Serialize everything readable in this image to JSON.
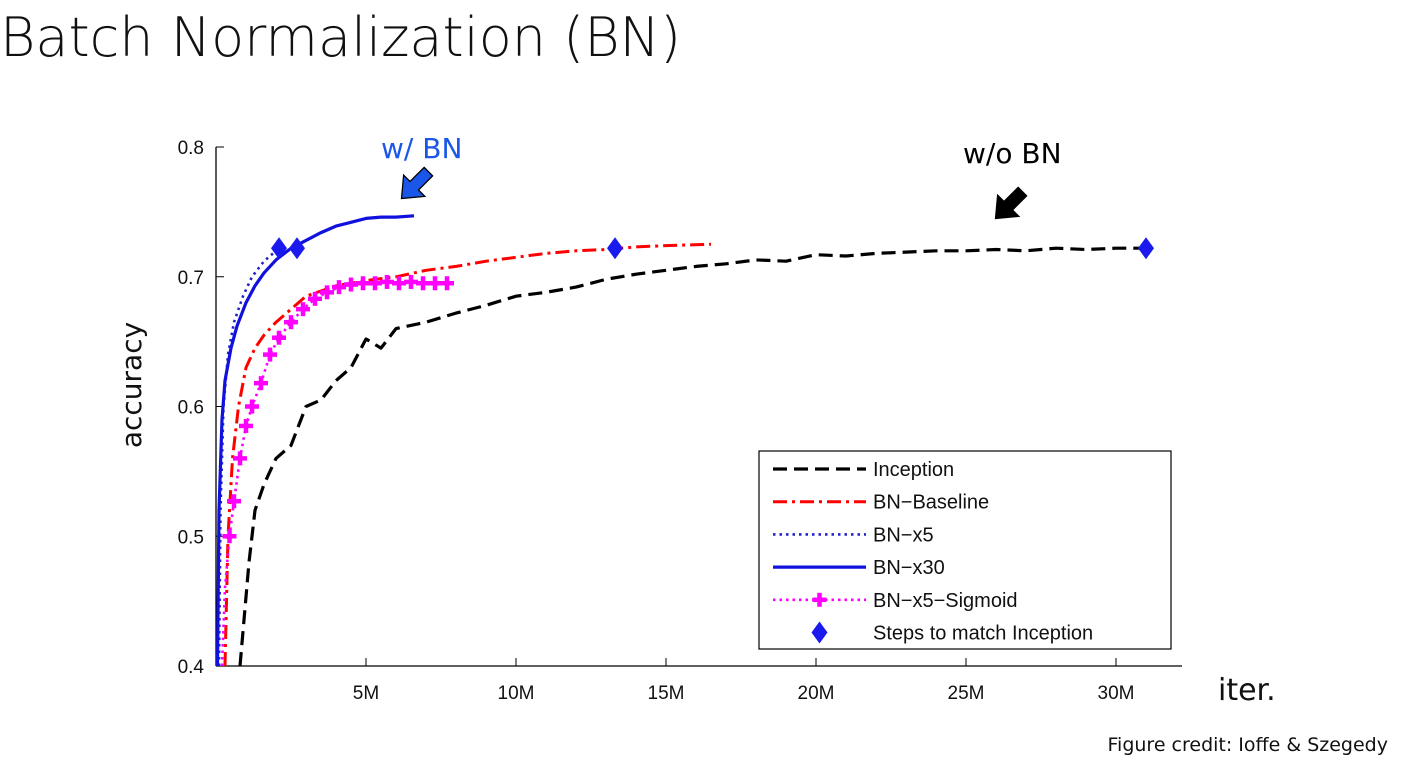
{
  "slide": {
    "title": "Batch Normalization (BN)",
    "credit": "Figure credit: Ioffe & Szegedy"
  },
  "chart_data": {
    "type": "line",
    "title": "",
    "xlabel": "iter.",
    "ylabel": "accuracy",
    "xlim": [
      0,
      32.2
    ],
    "ylim": [
      0.4,
      0.8
    ],
    "x_unit": "M",
    "xticks": [
      5,
      10,
      15,
      20,
      25,
      30
    ],
    "xtick_labels": [
      "5M",
      "10M",
      "15M",
      "20M",
      "25M",
      "30M"
    ],
    "yticks": [
      0.4,
      0.5,
      0.6,
      0.7,
      0.8
    ],
    "ytick_labels": [
      "0.4",
      "0.5",
      "0.6",
      "0.7",
      "0.8"
    ],
    "grid": false,
    "legend_position": "bottom-right",
    "colors": {
      "inception": "#000000",
      "bn_baseline": "#ff0000",
      "bn_x5": "#2222cc",
      "bn_x30": "#1111dd",
      "bn_x5_sigmoid": "#ff00ff",
      "steps_marker": "#1a1aee",
      "wbn_text": "#1a56e8",
      "wbn_arrow": "#1a56e8",
      "wobn_arrow": "#000000"
    },
    "series": [
      {
        "name": "Inception",
        "style": "dashed",
        "x": [
          0.8,
          0.95,
          1.1,
          1.3,
          1.6,
          2.0,
          2.5,
          3.0,
          3.5,
          4.0,
          4.5,
          5.0,
          5.5,
          6.0,
          7.0,
          8.0,
          9.0,
          10.0,
          11.0,
          12.0,
          13.0,
          14.0,
          15.0,
          16.0,
          17.0,
          18.0,
          19.0,
          20.0,
          21.0,
          22.0,
          23.0,
          24.0,
          25.0,
          26.0,
          27.0,
          28.0,
          29.0,
          30.0,
          31.0
        ],
        "y": [
          0.4,
          0.44,
          0.48,
          0.52,
          0.54,
          0.56,
          0.57,
          0.6,
          0.605,
          0.62,
          0.63,
          0.652,
          0.645,
          0.66,
          0.665,
          0.672,
          0.678,
          0.685,
          0.688,
          0.692,
          0.698,
          0.702,
          0.705,
          0.708,
          0.71,
          0.713,
          0.712,
          0.717,
          0.716,
          0.718,
          0.719,
          0.72,
          0.72,
          0.721,
          0.72,
          0.722,
          0.721,
          0.722,
          0.722
        ]
      },
      {
        "name": "BN−Baseline",
        "style": "dashdot",
        "x": [
          0.3,
          0.4,
          0.55,
          0.75,
          1.0,
          1.3,
          1.6,
          2.0,
          2.5,
          3.0,
          4.0,
          5.0,
          6.0,
          7.0,
          8.0,
          9.0,
          10.0,
          11.0,
          12.0,
          13.0,
          14.0,
          15.0,
          16.5
        ],
        "y": [
          0.4,
          0.5,
          0.56,
          0.6,
          0.63,
          0.645,
          0.655,
          0.665,
          0.675,
          0.685,
          0.693,
          0.697,
          0.7,
          0.705,
          0.708,
          0.712,
          0.715,
          0.718,
          0.72,
          0.721,
          0.723,
          0.724,
          0.725
        ]
      },
      {
        "name": "BN−x5",
        "style": "dotted",
        "x": [
          0.1,
          0.15,
          0.25,
          0.4,
          0.6,
          0.9,
          1.2,
          1.6,
          2.0
        ],
        "y": [
          0.4,
          0.52,
          0.6,
          0.64,
          0.665,
          0.685,
          0.7,
          0.712,
          0.72
        ]
      },
      {
        "name": "BN−x30",
        "style": "solid",
        "x": [
          0.05,
          0.1,
          0.2,
          0.3,
          0.5,
          0.7,
          1.0,
          1.3,
          1.6,
          2.0,
          2.5,
          3.0,
          3.5,
          4.0,
          4.5,
          5.0,
          5.5,
          6.0,
          6.6
        ],
        "y": [
          0.4,
          0.52,
          0.59,
          0.62,
          0.645,
          0.662,
          0.68,
          0.693,
          0.703,
          0.713,
          0.722,
          0.728,
          0.734,
          0.739,
          0.742,
          0.745,
          0.746,
          0.746,
          0.747
        ]
      },
      {
        "name": "BN−x5−Sigmoid",
        "style": "dotted-plus",
        "x": [
          0.2,
          0.3,
          0.45,
          0.6,
          0.8,
          1.0,
          1.2,
          1.5,
          1.8,
          2.1,
          2.5,
          2.9,
          3.3,
          3.7,
          4.1,
          4.5,
          4.9,
          5.3,
          5.7,
          6.1,
          6.5,
          6.9,
          7.3,
          7.7
        ],
        "y": [
          0.4,
          0.46,
          0.5,
          0.527,
          0.56,
          0.585,
          0.6,
          0.618,
          0.64,
          0.653,
          0.665,
          0.675,
          0.683,
          0.688,
          0.692,
          0.694,
          0.695,
          0.695,
          0.696,
          0.695,
          0.696,
          0.695,
          0.695,
          0.695
        ]
      },
      {
        "name": "Steps to match Inception",
        "style": "markers",
        "x": [
          2.1,
          2.7,
          13.3,
          31.0
        ],
        "y": [
          0.722,
          0.722,
          0.722,
          0.722
        ]
      }
    ],
    "annotations": [
      {
        "text": "w/ BN",
        "x": 6.2,
        "y": 0.75,
        "color": "#1a56e8"
      },
      {
        "text": "w/o BN",
        "x": 25.8,
        "y": 0.725,
        "color": "#000000"
      }
    ]
  }
}
